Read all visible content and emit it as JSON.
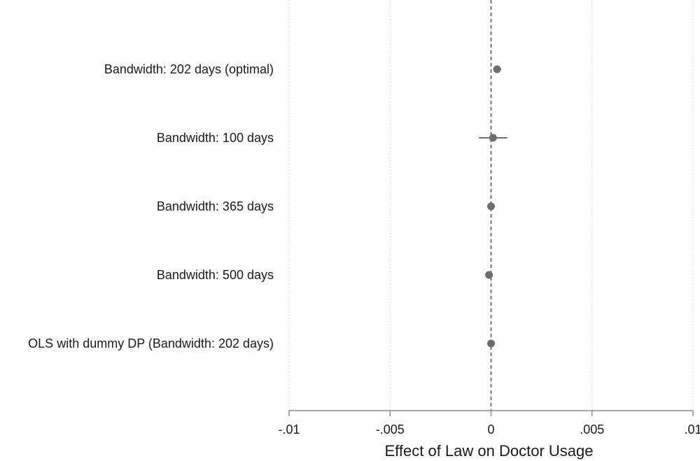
{
  "chart_data": {
    "type": "scatter",
    "title": "",
    "xlabel": "Effect of Law on Doctor Usage",
    "ylabel": "",
    "xlim": [
      -0.01,
      0.01
    ],
    "xticks": [
      {
        "value": -0.01,
        "label": "-.01"
      },
      {
        "value": -0.005,
        "label": "-.005"
      },
      {
        "value": 0,
        "label": "0"
      },
      {
        "value": 0.005,
        "label": ".005"
      },
      {
        "value": 0.01,
        "label": ".01"
      }
    ],
    "grid": "vertical dotted at x ticks",
    "reference_line": {
      "x": 0,
      "style": "dashed"
    },
    "rows": [
      {
        "label": "Bandwidth: 202 days (optimal)",
        "estimate": 0.0003,
        "ci_low": 0.0001,
        "ci_high": 0.0005
      },
      {
        "label": "Bandwidth: 100 days",
        "estimate": 0.0001,
        "ci_low": -0.0006,
        "ci_high": 0.0008
      },
      {
        "label": "Bandwidth: 365 days",
        "estimate": 0.0,
        "ci_low": -0.0001,
        "ci_high": 0.0001
      },
      {
        "label": "Bandwidth: 500 days",
        "estimate": -0.0001,
        "ci_low": -0.0002,
        "ci_high": 0.0
      },
      {
        "label": "OLS with dummy DP (Bandwidth: 202 days)",
        "estimate": 0.0,
        "ci_low": -0.0001,
        "ci_high": 0.0001
      }
    ],
    "colors": {
      "marker": "#6e6e6e",
      "grid": "#cccccc",
      "axis": "#8c8c8c",
      "reference": "#555555"
    }
  }
}
